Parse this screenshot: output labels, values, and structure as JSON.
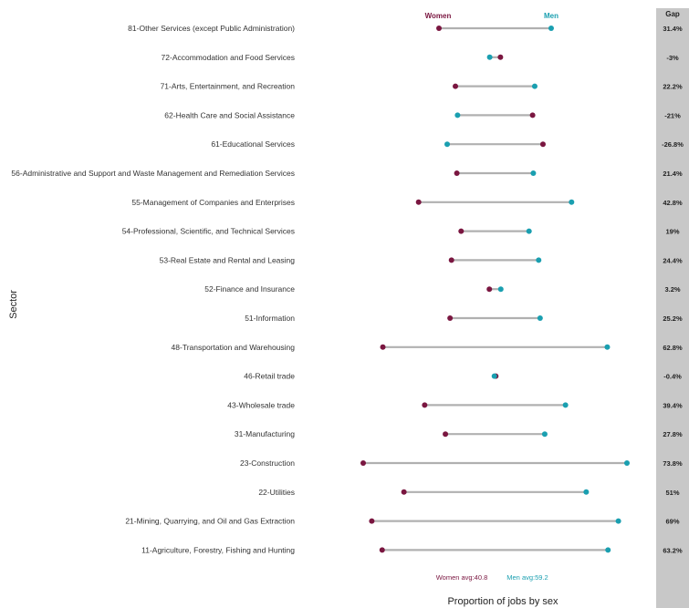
{
  "chart_data": {
    "type": "dumbbell",
    "xlabel": "Proportion of jobs by sex",
    "ylabel": "Sector",
    "legend": {
      "women": "Women",
      "men": "Men"
    },
    "gap_header": "Gap",
    "averages": {
      "women_label": "Women avg:40.8",
      "men_label": "Men avg:59.2",
      "women": 40.8,
      "men": 59.2
    },
    "colors": {
      "women": "#7a1640",
      "men": "#1a9fb0",
      "line": "#b0b0b0",
      "gap_panel": "#c8c8c8"
    },
    "xlim": [
      10,
      90
    ],
    "rows": [
      {
        "sector": "81-Other Services (except Public Administration)",
        "women": 34.3,
        "men": 65.7,
        "gap": "31.4%"
      },
      {
        "sector": "72-Accommodation and Food Services",
        "women": 51.5,
        "men": 48.5,
        "gap": "-3%"
      },
      {
        "sector": "71-Arts, Entertainment, and Recreation",
        "women": 38.9,
        "men": 61.1,
        "gap": "22.2%"
      },
      {
        "sector": "62-Health Care and Social Assistance",
        "women": 60.5,
        "men": 39.5,
        "gap": "-21%"
      },
      {
        "sector": "61-Educational Services",
        "women": 63.4,
        "men": 36.6,
        "gap": "-26.8%"
      },
      {
        "sector": "56-Administrative and Support and Waste Management and Remediation Services",
        "women": 39.3,
        "men": 60.7,
        "gap": "21.4%"
      },
      {
        "sector": "55-Management of Companies and Enterprises",
        "women": 28.6,
        "men": 71.4,
        "gap": "42.8%"
      },
      {
        "sector": "54-Professional, Scientific, and Technical Services",
        "women": 40.5,
        "men": 59.5,
        "gap": "19%"
      },
      {
        "sector": "53-Real Estate and Rental and Leasing",
        "women": 37.8,
        "men": 62.2,
        "gap": "24.4%"
      },
      {
        "sector": "52-Finance and Insurance",
        "women": 48.4,
        "men": 51.6,
        "gap": "3.2%"
      },
      {
        "sector": "51-Information",
        "women": 37.4,
        "men": 62.6,
        "gap": "25.2%"
      },
      {
        "sector": "48-Transportation and Warehousing",
        "women": 18.6,
        "men": 81.4,
        "gap": "62.8%"
      },
      {
        "sector": "46-Retail trade",
        "women": 50.2,
        "men": 49.8,
        "gap": "-0.4%"
      },
      {
        "sector": "43-Wholesale trade",
        "women": 30.3,
        "men": 69.7,
        "gap": "39.4%"
      },
      {
        "sector": "31-Manufacturing",
        "women": 36.1,
        "men": 63.9,
        "gap": "27.8%"
      },
      {
        "sector": "23-Construction",
        "women": 13.1,
        "men": 86.9,
        "gap": "73.8%"
      },
      {
        "sector": "22-Utilities",
        "women": 24.5,
        "men": 75.5,
        "gap": "51%"
      },
      {
        "sector": "21-Mining, Quarrying, and Oil and Gas Extraction",
        "women": 15.5,
        "men": 84.5,
        "gap": "69%"
      },
      {
        "sector": "11-Agriculture, Forestry, Fishing and Hunting",
        "women": 18.4,
        "men": 81.6,
        "gap": "63.2%"
      }
    ]
  }
}
